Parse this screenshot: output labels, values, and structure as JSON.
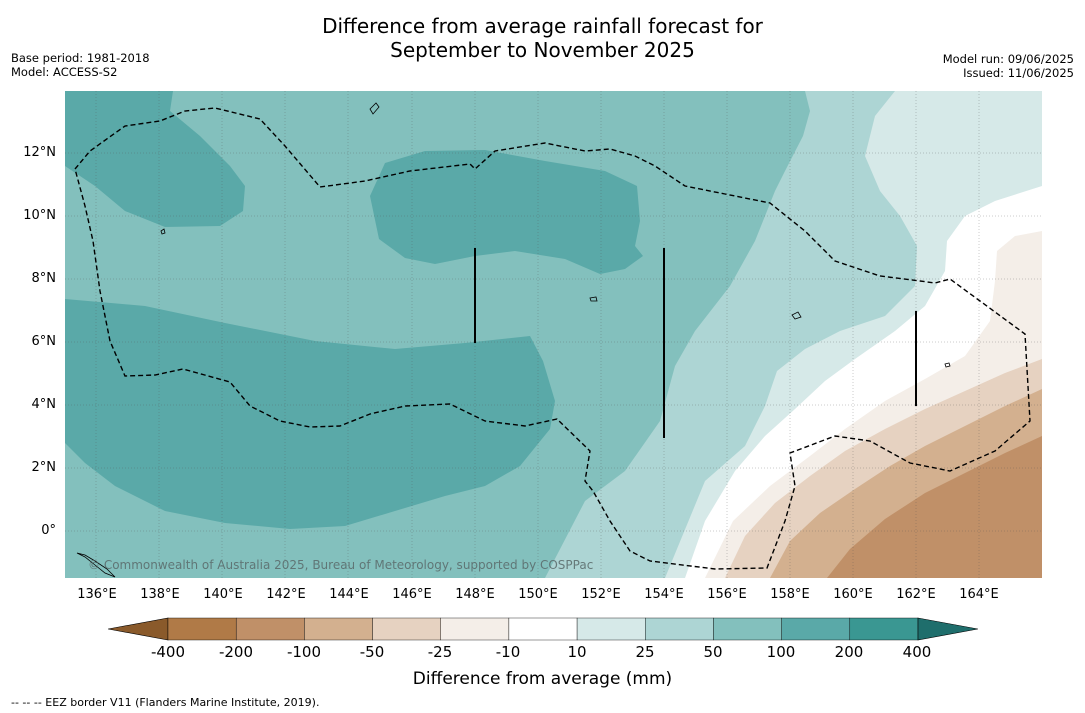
{
  "title_line1": "Difference from average rainfall forecast for",
  "title_line2": "September to November 2025",
  "base_period": "Base period: 1981-2018",
  "model": "Model: ACCESS-S2",
  "model_run": "Model run: 09/06/2025",
  "issued": "Issued: 11/06/2025",
  "copyright": "© Commonwealth of Australia 2025, Bureau of Meteorology, supported by COSPPac",
  "lat_labels": [
    "12°N",
    "10°N",
    "8°N",
    "6°N",
    "4°N",
    "2°N",
    "0°"
  ],
  "lon_labels": [
    "136°E",
    "138°E",
    "140°E",
    "142°E",
    "144°E",
    "146°E",
    "148°E",
    "150°E",
    "152°E",
    "154°E",
    "156°E",
    "158°E",
    "160°E",
    "162°E",
    "164°E"
  ],
  "colorbar": {
    "title": "Difference from average (mm)",
    "ticks": [
      "-400",
      "-200",
      "-100",
      "-50",
      "-25",
      "-10",
      "10",
      "25",
      "50",
      "100",
      "200",
      "400"
    ],
    "colors": [
      "#8a5a2b",
      "#b07a47",
      "#c09068",
      "#d3b08f",
      "#e6d2c1",
      "#f4eee8",
      "#ffffff",
      "#d6e9e8",
      "#add5d4",
      "#83c0bd",
      "#5aa9a8",
      "#3a9792",
      "#1f6e6c"
    ]
  },
  "footnote": "--  --  -- EEZ border V11 (Flanders Marine Institute, 2019)."
}
